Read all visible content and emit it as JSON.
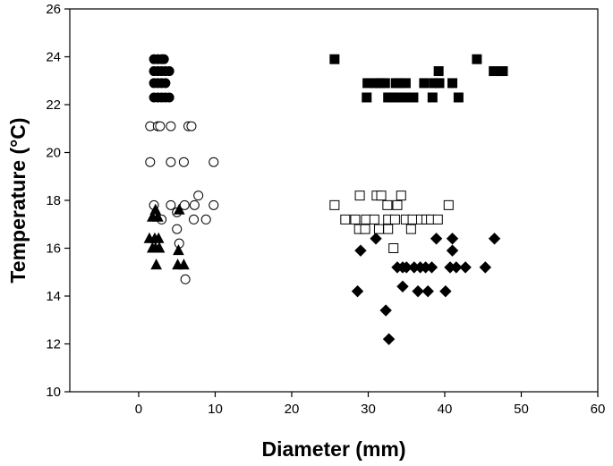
{
  "chart_data": {
    "type": "scatter",
    "title": "",
    "xlabel": "Diameter (mm)",
    "ylabel": "Temperature (°C)",
    "xlim": [
      -9,
      60
    ],
    "ylim": [
      10,
      26
    ],
    "xticks": [
      0,
      10,
      20,
      30,
      40,
      50,
      60
    ],
    "yticks": [
      10,
      12,
      14,
      16,
      18,
      20,
      22,
      24,
      26
    ],
    "grid": false,
    "legend": "none",
    "series": [
      {
        "marker": "filled-circle",
        "color": "#000000",
        "points": [
          [
            2.0,
            23.9
          ],
          [
            2.5,
            23.9
          ],
          [
            3.0,
            23.9
          ],
          [
            3.3,
            23.9
          ],
          [
            2.0,
            23.4
          ],
          [
            2.5,
            23.4
          ],
          [
            3.0,
            23.4
          ],
          [
            3.5,
            23.4
          ],
          [
            4.0,
            23.4
          ],
          [
            2.0,
            22.9
          ],
          [
            2.5,
            22.9
          ],
          [
            3.0,
            22.9
          ],
          [
            3.5,
            22.9
          ],
          [
            2.0,
            22.3
          ],
          [
            2.5,
            22.3
          ],
          [
            3.0,
            22.3
          ],
          [
            3.5,
            22.3
          ],
          [
            4.0,
            22.3
          ]
        ]
      },
      {
        "marker": "open-circle",
        "color": "#000000",
        "points": [
          [
            1.5,
            21.1
          ],
          [
            2.5,
            21.1
          ],
          [
            2.8,
            21.1
          ],
          [
            4.2,
            21.1
          ],
          [
            6.5,
            21.1
          ],
          [
            6.9,
            21.1
          ],
          [
            1.5,
            19.6
          ],
          [
            4.2,
            19.6
          ],
          [
            5.9,
            19.6
          ],
          [
            9.8,
            19.6
          ],
          [
            7.8,
            18.2
          ],
          [
            2.0,
            17.8
          ],
          [
            4.2,
            17.8
          ],
          [
            6.0,
            17.8
          ],
          [
            7.3,
            17.8
          ],
          [
            9.8,
            17.8
          ],
          [
            5.0,
            17.5
          ],
          [
            3.0,
            17.2
          ],
          [
            7.2,
            17.2
          ],
          [
            8.8,
            17.2
          ],
          [
            5.0,
            16.8
          ],
          [
            5.3,
            16.2
          ],
          [
            6.1,
            14.7
          ]
        ]
      },
      {
        "marker": "filled-triangle",
        "color": "#000000",
        "points": [
          [
            2.2,
            17.6
          ],
          [
            5.3,
            17.6
          ],
          [
            1.8,
            17.3
          ],
          [
            2.5,
            17.3
          ],
          [
            1.4,
            16.4
          ],
          [
            2.1,
            16.4
          ],
          [
            2.6,
            16.4
          ],
          [
            1.8,
            16.0
          ],
          [
            2.2,
            16.0
          ],
          [
            2.7,
            16.0
          ],
          [
            5.2,
            15.9
          ],
          [
            2.3,
            15.3
          ],
          [
            5.1,
            15.3
          ],
          [
            5.9,
            15.3
          ]
        ]
      },
      {
        "marker": "filled-square",
        "color": "#000000",
        "points": [
          [
            25.6,
            23.9
          ],
          [
            44.2,
            23.9
          ],
          [
            39.2,
            23.4
          ],
          [
            46.4,
            23.4
          ],
          [
            47.6,
            23.4
          ],
          [
            29.9,
            22.9
          ],
          [
            31.0,
            22.9
          ],
          [
            31.5,
            22.9
          ],
          [
            32.2,
            22.9
          ],
          [
            33.6,
            22.9
          ],
          [
            34.0,
            22.9
          ],
          [
            34.9,
            22.9
          ],
          [
            37.3,
            22.9
          ],
          [
            38.6,
            22.9
          ],
          [
            39.3,
            22.9
          ],
          [
            41.0,
            22.9
          ],
          [
            29.8,
            22.3
          ],
          [
            32.6,
            22.3
          ],
          [
            33.3,
            22.3
          ],
          [
            34.0,
            22.3
          ],
          [
            34.9,
            22.3
          ],
          [
            35.9,
            22.3
          ],
          [
            38.4,
            22.3
          ],
          [
            41.8,
            22.3
          ]
        ]
      },
      {
        "marker": "open-square",
        "color": "#000000",
        "points": [
          [
            28.9,
            18.2
          ],
          [
            31.1,
            18.2
          ],
          [
            31.7,
            18.2
          ],
          [
            34.3,
            18.2
          ],
          [
            25.6,
            17.8
          ],
          [
            32.5,
            17.8
          ],
          [
            33.8,
            17.8
          ],
          [
            40.5,
            17.8
          ],
          [
            27.0,
            17.2
          ],
          [
            28.3,
            17.2
          ],
          [
            29.7,
            17.2
          ],
          [
            30.8,
            17.2
          ],
          [
            32.6,
            17.2
          ],
          [
            33.5,
            17.2
          ],
          [
            34.9,
            17.2
          ],
          [
            35.8,
            17.2
          ],
          [
            36.9,
            17.2
          ],
          [
            37.6,
            17.2
          ],
          [
            38.2,
            17.2
          ],
          [
            39.1,
            17.2
          ],
          [
            28.8,
            16.8
          ],
          [
            29.6,
            16.8
          ],
          [
            31.4,
            16.8
          ],
          [
            32.6,
            16.8
          ],
          [
            35.6,
            16.8
          ],
          [
            33.3,
            16.0
          ]
        ]
      },
      {
        "marker": "filled-diamond",
        "color": "#000000",
        "points": [
          [
            31.0,
            16.4
          ],
          [
            38.9,
            16.4
          ],
          [
            41.0,
            16.4
          ],
          [
            46.5,
            16.4
          ],
          [
            29.0,
            15.9
          ],
          [
            41.0,
            15.9
          ],
          [
            33.8,
            15.2
          ],
          [
            34.5,
            15.2
          ],
          [
            35.0,
            15.2
          ],
          [
            36.0,
            15.2
          ],
          [
            36.8,
            15.2
          ],
          [
            37.5,
            15.2
          ],
          [
            38.3,
            15.2
          ],
          [
            40.7,
            15.2
          ],
          [
            41.5,
            15.2
          ],
          [
            42.7,
            15.2
          ],
          [
            45.3,
            15.2
          ],
          [
            34.5,
            14.4
          ],
          [
            28.6,
            14.2
          ],
          [
            36.5,
            14.2
          ],
          [
            37.8,
            14.2
          ],
          [
            40.1,
            14.2
          ],
          [
            32.3,
            13.4
          ],
          [
            32.7,
            12.2
          ]
        ]
      }
    ]
  }
}
